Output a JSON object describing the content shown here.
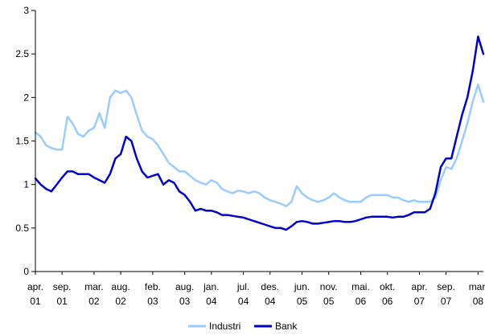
{
  "chart_data": {
    "type": "line",
    "title": "",
    "xlabel": "",
    "ylabel": "",
    "ylim": [
      0,
      3
    ],
    "y_ticks": [
      {
        "value": 0,
        "label": "0"
      },
      {
        "value": 0.5,
        "label": "0.5"
      },
      {
        "value": 1,
        "label": "1"
      },
      {
        "value": 1.5,
        "label": "1.5"
      },
      {
        "value": 2,
        "label": "2"
      },
      {
        "value": 2.5,
        "label": "2.5"
      },
      {
        "value": 3,
        "label": "3"
      }
    ],
    "x_range": [
      "2001-04",
      "2008-04"
    ],
    "x_ticks": [
      {
        "date": "2001-04",
        "line1": "apr.",
        "line2": "01"
      },
      {
        "date": "2001-09",
        "line1": "sep.",
        "line2": "01"
      },
      {
        "date": "2002-03",
        "line1": "mar.",
        "line2": "02"
      },
      {
        "date": "2002-08",
        "line1": "aug.",
        "line2": "02"
      },
      {
        "date": "2003-02",
        "line1": "feb.",
        "line2": "03"
      },
      {
        "date": "2003-08",
        "line1": "aug.",
        "line2": "03"
      },
      {
        "date": "2004-01",
        "line1": "jan.",
        "line2": "04"
      },
      {
        "date": "2004-07",
        "line1": "jul.",
        "line2": "04"
      },
      {
        "date": "2004-12",
        "line1": "des.",
        "line2": "04"
      },
      {
        "date": "2005-06",
        "line1": "jun.",
        "line2": "05"
      },
      {
        "date": "2005-11",
        "line1": "nov.",
        "line2": "05"
      },
      {
        "date": "2006-05",
        "line1": "mai.",
        "line2": "06"
      },
      {
        "date": "2006-10",
        "line1": "okt.",
        "line2": "06"
      },
      {
        "date": "2007-04",
        "line1": "apr.",
        "line2": "07"
      },
      {
        "date": "2007-09",
        "line1": "sep.",
        "line2": "07"
      },
      {
        "date": "2008-03",
        "line1": "mar.",
        "line2": "08"
      }
    ],
    "legend_position": "bottom",
    "series": [
      {
        "name": "Industri",
        "color": "#99ccff",
        "points": [
          [
            "2001-04",
            1.6
          ],
          [
            "2001-05",
            1.55
          ],
          [
            "2001-06",
            1.45
          ],
          [
            "2001-07",
            1.42
          ],
          [
            "2001-08",
            1.4
          ],
          [
            "2001-09",
            1.4
          ],
          [
            "2001-10",
            1.78
          ],
          [
            "2001-11",
            1.7
          ],
          [
            "2001-12",
            1.58
          ],
          [
            "2002-01",
            1.55
          ],
          [
            "2002-02",
            1.62
          ],
          [
            "2002-03",
            1.65
          ],
          [
            "2002-04",
            1.82
          ],
          [
            "2002-05",
            1.65
          ],
          [
            "2002-06",
            2.0
          ],
          [
            "2002-07",
            2.08
          ],
          [
            "2002-08",
            2.05
          ],
          [
            "2002-09",
            2.08
          ],
          [
            "2002-10",
            2.0
          ],
          [
            "2002-11",
            1.8
          ],
          [
            "2002-12",
            1.62
          ],
          [
            "2003-01",
            1.55
          ],
          [
            "2003-02",
            1.52
          ],
          [
            "2003-03",
            1.45
          ],
          [
            "2003-04",
            1.35
          ],
          [
            "2003-05",
            1.25
          ],
          [
            "2003-06",
            1.2
          ],
          [
            "2003-07",
            1.15
          ],
          [
            "2003-08",
            1.15
          ],
          [
            "2003-09",
            1.1
          ],
          [
            "2003-10",
            1.05
          ],
          [
            "2003-11",
            1.02
          ],
          [
            "2003-12",
            1.0
          ],
          [
            "2004-01",
            1.05
          ],
          [
            "2004-02",
            1.02
          ],
          [
            "2004-03",
            0.95
          ],
          [
            "2004-04",
            0.92
          ],
          [
            "2004-05",
            0.9
          ],
          [
            "2004-06",
            0.93
          ],
          [
            "2004-07",
            0.92
          ],
          [
            "2004-08",
            0.9
          ],
          [
            "2004-09",
            0.92
          ],
          [
            "2004-10",
            0.9
          ],
          [
            "2004-11",
            0.85
          ],
          [
            "2004-12",
            0.82
          ],
          [
            "2005-01",
            0.8
          ],
          [
            "2005-02",
            0.78
          ],
          [
            "2005-03",
            0.75
          ],
          [
            "2005-04",
            0.8
          ],
          [
            "2005-05",
            0.98
          ],
          [
            "2005-06",
            0.9
          ],
          [
            "2005-07",
            0.85
          ],
          [
            "2005-08",
            0.82
          ],
          [
            "2005-09",
            0.8
          ],
          [
            "2005-10",
            0.82
          ],
          [
            "2005-11",
            0.85
          ],
          [
            "2005-12",
            0.9
          ],
          [
            "2006-01",
            0.85
          ],
          [
            "2006-02",
            0.82
          ],
          [
            "2006-03",
            0.8
          ],
          [
            "2006-04",
            0.8
          ],
          [
            "2006-05",
            0.8
          ],
          [
            "2006-06",
            0.85
          ],
          [
            "2006-07",
            0.88
          ],
          [
            "2006-08",
            0.88
          ],
          [
            "2006-09",
            0.88
          ],
          [
            "2006-10",
            0.88
          ],
          [
            "2006-11",
            0.85
          ],
          [
            "2006-12",
            0.85
          ],
          [
            "2007-01",
            0.82
          ],
          [
            "2007-02",
            0.8
          ],
          [
            "2007-03",
            0.82
          ],
          [
            "2007-04",
            0.8
          ],
          [
            "2007-05",
            0.8
          ],
          [
            "2007-06",
            0.8
          ],
          [
            "2007-07",
            0.85
          ],
          [
            "2007-08",
            1.05
          ],
          [
            "2007-09",
            1.2
          ],
          [
            "2007-10",
            1.18
          ],
          [
            "2007-11",
            1.3
          ],
          [
            "2007-12",
            1.5
          ],
          [
            "2008-01",
            1.7
          ],
          [
            "2008-02",
            1.95
          ],
          [
            "2008-03",
            2.15
          ],
          [
            "2008-04",
            1.95
          ]
        ]
      },
      {
        "name": "Bank",
        "color": "#0000cc",
        "points": [
          [
            "2001-04",
            1.07
          ],
          [
            "2001-05",
            1.0
          ],
          [
            "2001-06",
            0.95
          ],
          [
            "2001-07",
            0.92
          ],
          [
            "2001-08",
            1.0
          ],
          [
            "2001-09",
            1.08
          ],
          [
            "2001-10",
            1.15
          ],
          [
            "2001-11",
            1.15
          ],
          [
            "2001-12",
            1.12
          ],
          [
            "2002-01",
            1.12
          ],
          [
            "2002-02",
            1.12
          ],
          [
            "2002-03",
            1.08
          ],
          [
            "2002-04",
            1.05
          ],
          [
            "2002-05",
            1.02
          ],
          [
            "2002-06",
            1.12
          ],
          [
            "2002-07",
            1.3
          ],
          [
            "2002-08",
            1.35
          ],
          [
            "2002-09",
            1.55
          ],
          [
            "2002-10",
            1.5
          ],
          [
            "2002-11",
            1.3
          ],
          [
            "2002-12",
            1.15
          ],
          [
            "2003-01",
            1.08
          ],
          [
            "2003-02",
            1.1
          ],
          [
            "2003-03",
            1.12
          ],
          [
            "2003-04",
            1.0
          ],
          [
            "2003-05",
            1.05
          ],
          [
            "2003-06",
            1.02
          ],
          [
            "2003-07",
            0.92
          ],
          [
            "2003-08",
            0.88
          ],
          [
            "2003-09",
            0.8
          ],
          [
            "2003-10",
            0.7
          ],
          [
            "2003-11",
            0.72
          ],
          [
            "2003-12",
            0.7
          ],
          [
            "2004-01",
            0.7
          ],
          [
            "2004-02",
            0.68
          ],
          [
            "2004-03",
            0.65
          ],
          [
            "2004-04",
            0.65
          ],
          [
            "2004-05",
            0.64
          ],
          [
            "2004-06",
            0.63
          ],
          [
            "2004-07",
            0.62
          ],
          [
            "2004-08",
            0.6
          ],
          [
            "2004-09",
            0.58
          ],
          [
            "2004-10",
            0.56
          ],
          [
            "2004-11",
            0.54
          ],
          [
            "2004-12",
            0.52
          ],
          [
            "2005-01",
            0.5
          ],
          [
            "2005-02",
            0.5
          ],
          [
            "2005-03",
            0.48
          ],
          [
            "2005-04",
            0.52
          ],
          [
            "2005-05",
            0.57
          ],
          [
            "2005-06",
            0.58
          ],
          [
            "2005-07",
            0.57
          ],
          [
            "2005-08",
            0.55
          ],
          [
            "2005-09",
            0.55
          ],
          [
            "2005-10",
            0.56
          ],
          [
            "2005-11",
            0.57
          ],
          [
            "2005-12",
            0.58
          ],
          [
            "2006-01",
            0.58
          ],
          [
            "2006-02",
            0.57
          ],
          [
            "2006-03",
            0.57
          ],
          [
            "2006-04",
            0.58
          ],
          [
            "2006-05",
            0.6
          ],
          [
            "2006-06",
            0.62
          ],
          [
            "2006-07",
            0.63
          ],
          [
            "2006-08",
            0.63
          ],
          [
            "2006-09",
            0.63
          ],
          [
            "2006-10",
            0.63
          ],
          [
            "2006-11",
            0.62
          ],
          [
            "2006-12",
            0.63
          ],
          [
            "2007-01",
            0.63
          ],
          [
            "2007-02",
            0.65
          ],
          [
            "2007-03",
            0.68
          ],
          [
            "2007-04",
            0.68
          ],
          [
            "2007-05",
            0.68
          ],
          [
            "2007-06",
            0.72
          ],
          [
            "2007-07",
            0.9
          ],
          [
            "2007-08",
            1.2
          ],
          [
            "2007-09",
            1.3
          ],
          [
            "2007-10",
            1.3
          ],
          [
            "2007-11",
            1.55
          ],
          [
            "2007-12",
            1.8
          ],
          [
            "2008-01",
            2.0
          ],
          [
            "2008-02",
            2.3
          ],
          [
            "2008-03",
            2.7
          ],
          [
            "2008-04",
            2.5
          ]
        ]
      }
    ]
  }
}
